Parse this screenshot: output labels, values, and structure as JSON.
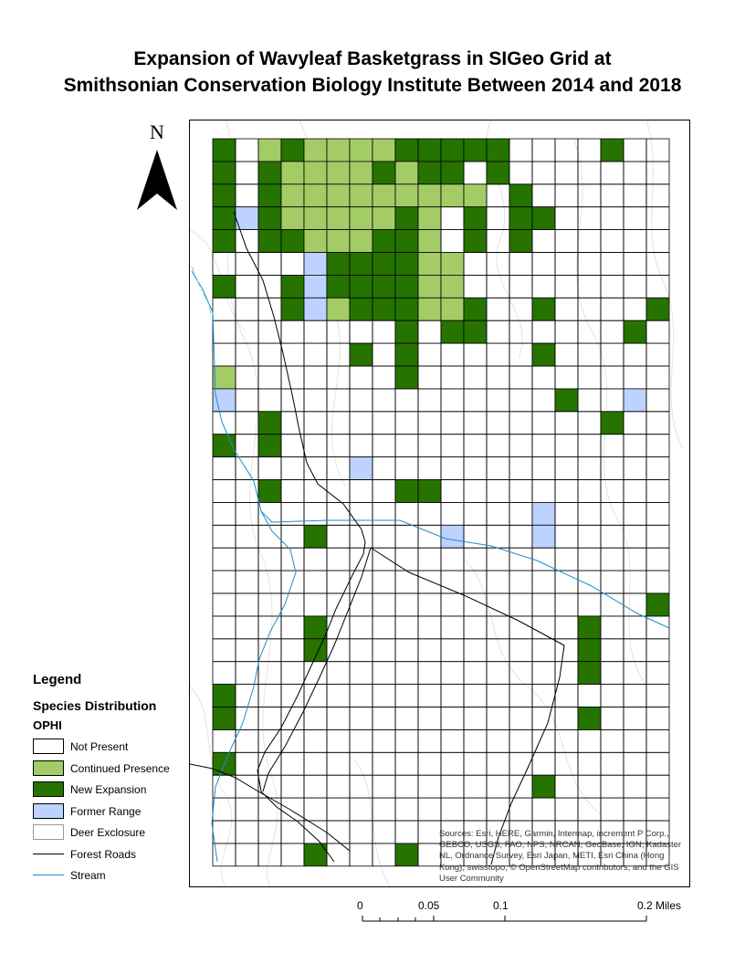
{
  "title": {
    "line1": "Expansion of Wavyleaf Basketgrass in SIGeo Grid at",
    "line2": "Smithsonian Conservation Biology Institute Between 2014 and 2018"
  },
  "north_arrow": {
    "label": "N"
  },
  "legend": {
    "title": "Legend",
    "subtitle": "Species Distribution",
    "layer": "OPHI",
    "items": [
      {
        "label": "Not Present",
        "color": "#ffffff",
        "type": "box"
      },
      {
        "label": "Continued Presence",
        "color": "#a3cc66",
        "type": "box"
      },
      {
        "label": "New Expansion",
        "color": "#267300",
        "type": "box"
      },
      {
        "label": "Former Range",
        "color": "#bed2ff",
        "type": "box"
      },
      {
        "label": "Deer Exclosure",
        "color": "#ffffff",
        "type": "box-grey"
      },
      {
        "label": "Forest Roads",
        "color": "#000000",
        "type": "line"
      },
      {
        "label": "Stream",
        "color": "#1f8ccc",
        "type": "line"
      }
    ]
  },
  "attribution": "Sources: Esri, HERE, Garmin, Intermap, increment P Corp., GEBCO, USGS, FAO, NPS, NRCAN, GeoBase, IGN, Kadaster NL, Ordnance Survey, Esri Japan, METI, Esri China (Hong Kong), swisstopo, © OpenStreetMap contributors, and the GIS User Community",
  "scale_bar": {
    "ticks": [
      "0",
      "0.05",
      "0.1",
      "0.2 Miles"
    ]
  },
  "map_data": {
    "grid": {
      "cols": 20,
      "rows": 32
    },
    "colors": {
      "C": "#a3cc66",
      "N": "#267300",
      "F": "#bed2ff"
    },
    "rows": [
      "N.CNCCCCNNNNN....N..",
      "N.NCCCCNCNN.N.......",
      "N.NCCCCCCCCC.N......",
      "NFNCCCCCNC.N.NN.....",
      "N.NNCCCNNC.N.N......",
      "....FNNNNCC.........",
      "N..NFNNNNCC.........",
      "...NFCNNNCCN..N....N",
      "........N.NN......N.",
      "......N.N.....N.....",
      "C.......N...........",
      "F..............N..F.",
      "..N..............N..",
      "N.N.................",
      "......F.............",
      "..N.....NN..........",
      "..............F.....",
      "....N.....F...F.....",
      "....................",
      "....................",
      "...................N",
      "....N...........N...",
      "....N...........N...",
      "................N...",
      "N...................",
      "N...............N...",
      "....................",
      "N...................",
      "..............N.....",
      "....................",
      "....................",
      "....N...N..........."
    ]
  }
}
